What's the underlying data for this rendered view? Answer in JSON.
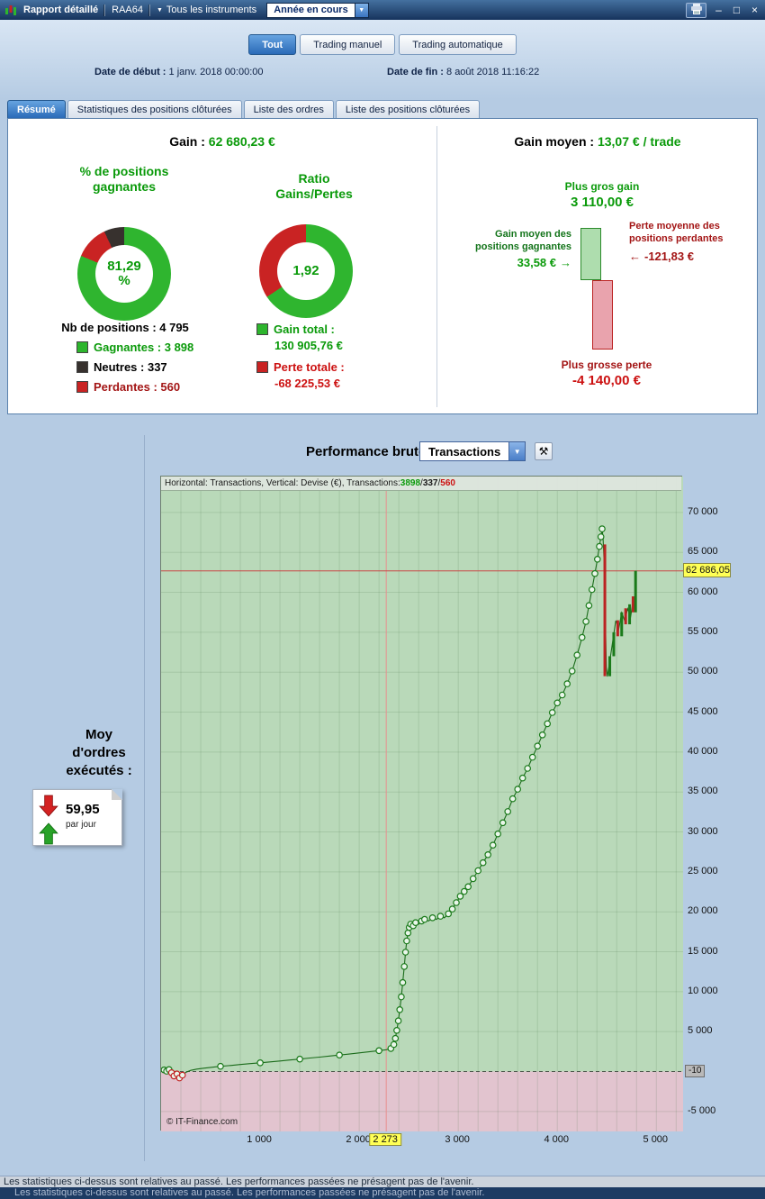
{
  "icons": {
    "chevron_down": "▼",
    "minimize": "–",
    "maximize": "□",
    "close": "×",
    "arrow_right": "→",
    "arrow_left": "←",
    "tool": "⚒"
  },
  "titlebar": {
    "title": "Rapport détaillé",
    "account_label": "RAA64",
    "instruments_label": "Tous les instruments",
    "period_value": "Année en cours"
  },
  "filter_tabs": {
    "items": [
      {
        "label": "Tout",
        "selected": true
      },
      {
        "label": "Trading manuel",
        "selected": false
      },
      {
        "label": "Trading automatique",
        "selected": false
      }
    ]
  },
  "dates": {
    "start_label": "Date de début :",
    "start_value": "1 janv. 2018 00:00:00",
    "end_label": "Date de fin :",
    "end_value": "8 août 2018 11:16:22"
  },
  "report_tabs": {
    "items": [
      {
        "label": "Résumé",
        "selected": true
      },
      {
        "label": "Statistiques des positions clôturées",
        "selected": false
      },
      {
        "label": "Liste des ordres",
        "selected": false
      },
      {
        "label": "Liste des positions clôturées",
        "selected": false
      }
    ]
  },
  "summary": {
    "gain_label": "Gain :",
    "gain_value": "62 680,23 €",
    "winners_pct_title": "% de positions gagnantes",
    "donut_winners": {
      "value": "81,29",
      "unit": "%",
      "segments": [
        {
          "name": "gagnantes",
          "pct": 81.29,
          "color": "#2fb52f"
        },
        {
          "name": "perdantes",
          "pct": 11.68,
          "color": "#c92323"
        },
        {
          "name": "neutres",
          "pct": 7.03,
          "color": "#37312e"
        }
      ]
    },
    "ratio_title": "Ratio Gains/Pertes",
    "donut_ratio": {
      "value": "1,92",
      "segments": [
        {
          "name": "gains",
          "pct": 65.75,
          "color": "#2fb52f"
        },
        {
          "name": "pertes",
          "pct": 34.25,
          "color": "#c92323"
        }
      ]
    },
    "positions_label": "Nb de positions : 4 795",
    "legend": [
      {
        "label": "Gagnantes : 3 898",
        "color": "#2db52d"
      },
      {
        "label": "Neutres : 337",
        "color": "#37312e"
      },
      {
        "label": "Perdantes : 560",
        "color": "#c92323"
      }
    ],
    "gain_total_label": "Gain total :",
    "gain_total_value": "130 905,76 €",
    "gain_total_color": "#2db52d",
    "loss_total_label": "Perte totale :",
    "loss_total_value": "-68 225,53 €",
    "loss_total_color": "#c92323",
    "avg_gain_label": "Gain moyen :",
    "avg_gain_value": "13,07 € / trade",
    "biggest_gain_label": "Plus gros gain",
    "biggest_gain_value": "3 110,00 €",
    "bar_chart": {
      "gain": 3110,
      "loss": 4140
    },
    "avg_win_label": "Gain moyen des positions gagnantes",
    "avg_win_value": "33,58 €",
    "avg_loss_label": "Perte moyenne des positions perdantes",
    "avg_loss_value": "-121,83 €",
    "biggest_loss_label": "Plus grosse perte",
    "biggest_loss_value": "-4 140,00 €"
  },
  "chart_header": {
    "title": "Performance brute",
    "select_value": "Transactions"
  },
  "sidebar": {
    "title": "Moy d'ordres exécutés :",
    "value": "59,95",
    "unit": "par jour"
  },
  "chart_data": {
    "type": "line",
    "title": "Performance brute",
    "series_name": "Transactions",
    "header": {
      "prefix": "Horizontal: Transactions, Vertical: Devise (€), Transactions: ",
      "wins": "3898",
      "sep1": " / ",
      "neutral": "337",
      "sep2": " / ",
      "losses": "560"
    },
    "xlim": [
      0,
      5270
    ],
    "ylim": [
      -7500,
      74500
    ],
    "x_grid_step": 200,
    "y_grid_step": 5000,
    "y_ticks": [
      {
        "v": 70000,
        "label": "70 000"
      },
      {
        "v": 65000,
        "label": "65 000"
      },
      {
        "v": 60000,
        "label": "60 000"
      },
      {
        "v": 55000,
        "label": "55 000"
      },
      {
        "v": 50000,
        "label": "50 000"
      },
      {
        "v": 45000,
        "label": "45 000"
      },
      {
        "v": 40000,
        "label": "40 000"
      },
      {
        "v": 35000,
        "label": "35 000"
      },
      {
        "v": 30000,
        "label": "30 000"
      },
      {
        "v": 25000,
        "label": "25 000"
      },
      {
        "v": 20000,
        "label": "20 000"
      },
      {
        "v": 15000,
        "label": "15 000"
      },
      {
        "v": 10000,
        "label": "10 000"
      },
      {
        "v": 5000,
        "label": "5 000"
      },
      {
        "v": -5000,
        "label": "-5 000"
      }
    ],
    "x_ticks": [
      {
        "v": 1000,
        "label": "1 000"
      },
      {
        "v": 2000,
        "label": "2 000"
      },
      {
        "v": 3000,
        "label": "3 000"
      },
      {
        "v": 4000,
        "label": "4 000"
      },
      {
        "v": 5000,
        "label": "5 000"
      }
    ],
    "crosshair": {
      "x": 2273,
      "x_label": "2 273",
      "y": 62686.05,
      "y_label": "62 686,05"
    },
    "zero_line_label": "-10",
    "watermark": "© IT-Finance.com",
    "colors": {
      "bg_pos": "#b9d9b9",
      "bg_neg": "#e2c4cf",
      "grid": "rgba(60,105,60,0.16)",
      "zero": "#4a564a",
      "line": "#1a6b1a",
      "marker_fill": "#eaf6ea",
      "marker_pos": "#1a7a1a",
      "marker_neg": "#c22222",
      "crosshair_v": "#e98f8f",
      "crosshair_h": "#c94444",
      "candle_up": "#1a7a1a",
      "candle_down": "#bb2222"
    },
    "points": [
      [
        30,
        200,
        1
      ],
      [
        55,
        50,
        1
      ],
      [
        80,
        250,
        1
      ],
      [
        105,
        -150,
        1
      ],
      [
        130,
        -550,
        1
      ],
      [
        160,
        -300,
        1
      ],
      [
        185,
        -800,
        1
      ],
      [
        215,
        -450,
        1
      ],
      [
        250,
        -100,
        0
      ],
      [
        300,
        150,
        0
      ],
      [
        360,
        300,
        0
      ],
      [
        430,
        420,
        0
      ],
      [
        500,
        520,
        0
      ],
      [
        600,
        650,
        1
      ],
      [
        700,
        760,
        0
      ],
      [
        800,
        880,
        0
      ],
      [
        900,
        990,
        0
      ],
      [
        1000,
        1100,
        1
      ],
      [
        1100,
        1210,
        0
      ],
      [
        1200,
        1320,
        0
      ],
      [
        1300,
        1440,
        0
      ],
      [
        1400,
        1560,
        1
      ],
      [
        1500,
        1690,
        0
      ],
      [
        1600,
        1810,
        0
      ],
      [
        1700,
        1940,
        0
      ],
      [
        1800,
        2060,
        1
      ],
      [
        1900,
        2190,
        0
      ],
      [
        2000,
        2330,
        0
      ],
      [
        2100,
        2470,
        0
      ],
      [
        2200,
        2620,
        1
      ],
      [
        2273,
        2730,
        0
      ],
      [
        2320,
        2890,
        1
      ],
      [
        2350,
        3380,
        1
      ],
      [
        2365,
        4150,
        1
      ],
      [
        2380,
        5150,
        1
      ],
      [
        2395,
        6350,
        1
      ],
      [
        2410,
        7750,
        1
      ],
      [
        2425,
        9350,
        1
      ],
      [
        2440,
        11150,
        1
      ],
      [
        2455,
        13150,
        1
      ],
      [
        2468,
        14950,
        1
      ],
      [
        2480,
        16350,
        1
      ],
      [
        2492,
        17350,
        1
      ],
      [
        2505,
        18050,
        1
      ],
      [
        2520,
        18450,
        1
      ],
      [
        2545,
        18250,
        1
      ],
      [
        2570,
        18650,
        1
      ],
      [
        2600,
        18450,
        0
      ],
      [
        2630,
        18850,
        1
      ],
      [
        2660,
        19050,
        1
      ],
      [
        2700,
        18850,
        0
      ],
      [
        2740,
        19250,
        1
      ],
      [
        2780,
        19050,
        0
      ],
      [
        2820,
        19450,
        1
      ],
      [
        2860,
        19250,
        0
      ],
      [
        2900,
        19750,
        1
      ],
      [
        2940,
        20350,
        1
      ],
      [
        2980,
        21150,
        1
      ],
      [
        3020,
        21950,
        1
      ],
      [
        3060,
        22550,
        1
      ],
      [
        3100,
        23150,
        1
      ],
      [
        3150,
        24150,
        1
      ],
      [
        3200,
        25150,
        1
      ],
      [
        3250,
        26150,
        1
      ],
      [
        3300,
        27150,
        1
      ],
      [
        3350,
        28350,
        1
      ],
      [
        3400,
        29750,
        1
      ],
      [
        3450,
        31150,
        1
      ],
      [
        3500,
        32550,
        1
      ],
      [
        3550,
        34150,
        1
      ],
      [
        3600,
        35350,
        1
      ],
      [
        3650,
        36750,
        1
      ],
      [
        3700,
        37950,
        1
      ],
      [
        3750,
        39350,
        1
      ],
      [
        3800,
        40750,
        1
      ],
      [
        3850,
        42150,
        1
      ],
      [
        3900,
        43550,
        1
      ],
      [
        3950,
        44950,
        1
      ],
      [
        4000,
        46150,
        1
      ],
      [
        4050,
        47150,
        1
      ],
      [
        4100,
        48550,
        1
      ],
      [
        4150,
        50150,
        1
      ],
      [
        4200,
        52150,
        1
      ],
      [
        4250,
        54350,
        1
      ],
      [
        4290,
        56350,
        1
      ],
      [
        4320,
        58350,
        1
      ],
      [
        4350,
        60350,
        1
      ],
      [
        4380,
        62350,
        1
      ],
      [
        4405,
        64150,
        1
      ],
      [
        4425,
        65750,
        1
      ],
      [
        4440,
        66950,
        1
      ],
      [
        4452,
        67950,
        1
      ],
      [
        4462,
        66750,
        0
      ],
      [
        4472,
        63950,
        0
      ],
      [
        4480,
        59950,
        0
      ],
      [
        4488,
        54950,
        0
      ],
      [
        4496,
        50450,
        0
      ],
      [
        4505,
        49450,
        0
      ],
      [
        4530,
        51450,
        0
      ],
      [
        4560,
        53950,
        0
      ],
      [
        4590,
        56450,
        0
      ],
      [
        4620,
        55450,
        0
      ],
      [
        4650,
        57450,
        0
      ],
      [
        4680,
        56450,
        0
      ],
      [
        4710,
        57950,
        0
      ],
      [
        4740,
        56950,
        0
      ],
      [
        4765,
        58950,
        0
      ],
      [
        4780,
        57950,
        0
      ],
      [
        4795,
        62686,
        0
      ]
    ],
    "candles": [
      [
        4480,
        66000,
        49500,
        "r"
      ],
      [
        4530,
        49500,
        52000,
        "g"
      ],
      [
        4570,
        52000,
        55000,
        "g"
      ],
      [
        4610,
        56500,
        54500,
        "r"
      ],
      [
        4650,
        54500,
        57500,
        "g"
      ],
      [
        4690,
        58000,
        56000,
        "r"
      ],
      [
        4730,
        56000,
        58500,
        "g"
      ],
      [
        4765,
        59500,
        57500,
        "r"
      ],
      [
        4790,
        57500,
        62686,
        "g"
      ]
    ]
  },
  "footer": {
    "line1": "Les statistiques ci-dessus sont relatives au passé. Les performances passées ne présagent pas de l'avenir.",
    "line2": "Les statistiques ci-dessus sont relatives au passé. Les performances passées ne présagent pas de l'avenir."
  }
}
